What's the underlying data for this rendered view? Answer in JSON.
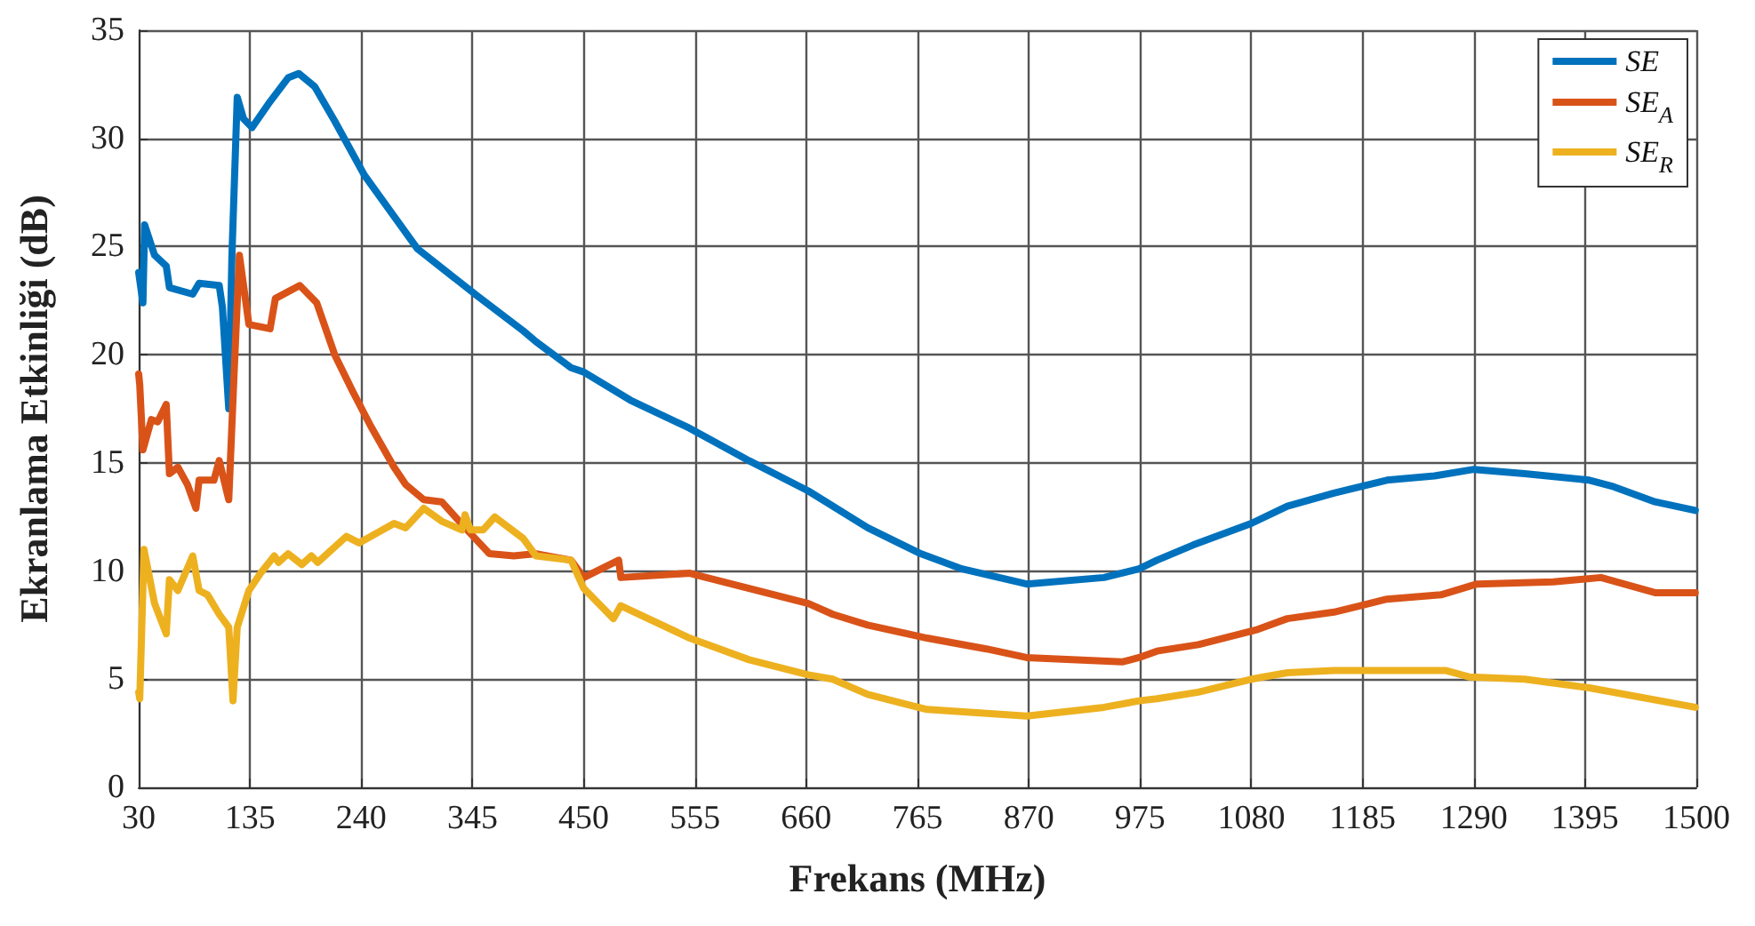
{
  "chart_data": {
    "type": "line",
    "xlabel": "Frekans (MHz)",
    "ylabel": "Ekranlama Etkinliği (dB)",
    "xlim": [
      30,
      1500
    ],
    "xticks": [
      30,
      135,
      240,
      345,
      450,
      555,
      660,
      765,
      870,
      975,
      1080,
      1185,
      1290,
      1395,
      1500
    ],
    "ylim": [
      0,
      35
    ],
    "yticks": [
      0,
      5,
      10,
      15,
      20,
      25,
      30,
      35
    ],
    "grid": true,
    "legend": "top right",
    "line_style": "solid",
    "marker": "none",
    "series": [
      {
        "name": "SE",
        "color": "#0072bd",
        "x": [
          30,
          34,
          35.6,
          45,
          56,
          59,
          81,
          87,
          106,
          109,
          115,
          118,
          123,
          129,
          137,
          154,
          171,
          181,
          196,
          215,
          243,
          293,
          350,
          393,
          405,
          438,
          450,
          494,
          550,
          606,
          662,
          718,
          768,
          807,
          868,
          941,
          974,
          991,
          1025,
          1080,
          1114,
          1158,
          1208,
          1253,
          1290,
          1338,
          1399,
          1422,
          1461,
          1499
        ],
        "values": [
          23.8,
          22.4,
          26.0,
          24.6,
          24.1,
          23.1,
          22.8,
          23.3,
          23.2,
          22.2,
          17.5,
          24.6,
          31.9,
          30.9,
          30.5,
          31.7,
          32.8,
          33.0,
          32.4,
          30.8,
          28.3,
          24.9,
          22.7,
          21.1,
          20.6,
          19.4,
          19.2,
          17.9,
          16.6,
          15.1,
          13.7,
          12.0,
          10.8,
          10.1,
          9.4,
          9.7,
          10.1,
          10.5,
          11.2,
          12.2,
          13.0,
          13.6,
          14.2,
          14.4,
          14.7,
          14.5,
          14.2,
          13.9,
          13.2,
          12.8
        ]
      },
      {
        "name": "SE$_{A}$",
        "color": "#d95319",
        "x": [
          30,
          31,
          34,
          42,
          48,
          56,
          59,
          67,
          76,
          84,
          87,
          101,
          106,
          109,
          115,
          120,
          125,
          134,
          154,
          159,
          182,
          198,
          215,
          232,
          249,
          271,
          282,
          299,
          316,
          338,
          361,
          384,
          405,
          438,
          450,
          483,
          485,
          550,
          606,
          662,
          685,
          718,
          774,
          830,
          868,
          958,
          974,
          991,
          1030,
          1086,
          1114,
          1158,
          1208,
          1259,
          1293,
          1365,
          1410,
          1461,
          1499
        ],
        "values": [
          19.1,
          18.6,
          15.6,
          17.0,
          16.9,
          17.7,
          14.5,
          14.8,
          14.0,
          12.9,
          14.2,
          14.2,
          15.1,
          14.5,
          13.3,
          19.1,
          24.6,
          21.4,
          21.2,
          22.6,
          23.2,
          22.4,
          20.0,
          18.3,
          16.7,
          14.8,
          14.0,
          13.3,
          13.2,
          12.0,
          10.8,
          10.7,
          10.8,
          10.5,
          9.7,
          10.5,
          9.7,
          9.9,
          9.2,
          8.5,
          8.0,
          7.5,
          6.9,
          6.4,
          6.0,
          5.8,
          6.0,
          6.3,
          6.6,
          7.3,
          7.8,
          8.1,
          8.7,
          8.9,
          9.4,
          9.5,
          9.7,
          9.0,
          9.0
        ]
      },
      {
        "name": "SE$_{R}$",
        "color": "#edb120",
        "x": [
          30,
          31,
          35,
          45,
          56,
          59,
          67,
          81,
          87,
          95,
          106,
          115,
          119,
          123,
          134,
          145,
          158,
          162,
          171,
          184,
          193,
          199,
          226,
          238,
          271,
          282,
          299,
          316,
          335,
          338,
          343,
          355,
          366,
          393,
          405,
          438,
          450,
          478,
          485,
          550,
          606,
          662,
          685,
          718,
          774,
          868,
          941,
          974,
          991,
          1030,
          1080,
          1114,
          1158,
          1208,
          1264,
          1286,
          1338,
          1399,
          1499
        ],
        "values": [
          4.4,
          4.1,
          11.0,
          8.5,
          7.1,
          9.6,
          9.1,
          10.7,
          9.1,
          8.9,
          8.0,
          7.4,
          4.0,
          7.4,
          9.1,
          9.9,
          10.7,
          10.4,
          10.8,
          10.3,
          10.7,
          10.4,
          11.6,
          11.3,
          12.2,
          12.0,
          12.9,
          12.3,
          11.9,
          12.6,
          11.9,
          11.9,
          12.5,
          11.5,
          10.7,
          10.5,
          9.2,
          7.8,
          8.4,
          6.9,
          5.9,
          5.2,
          5.0,
          4.3,
          3.6,
          3.3,
          3.7,
          4.0,
          4.1,
          4.4,
          5.0,
          5.3,
          5.4,
          5.4,
          5.4,
          5.1,
          5.0,
          4.6,
          3.7
        ]
      }
    ]
  }
}
